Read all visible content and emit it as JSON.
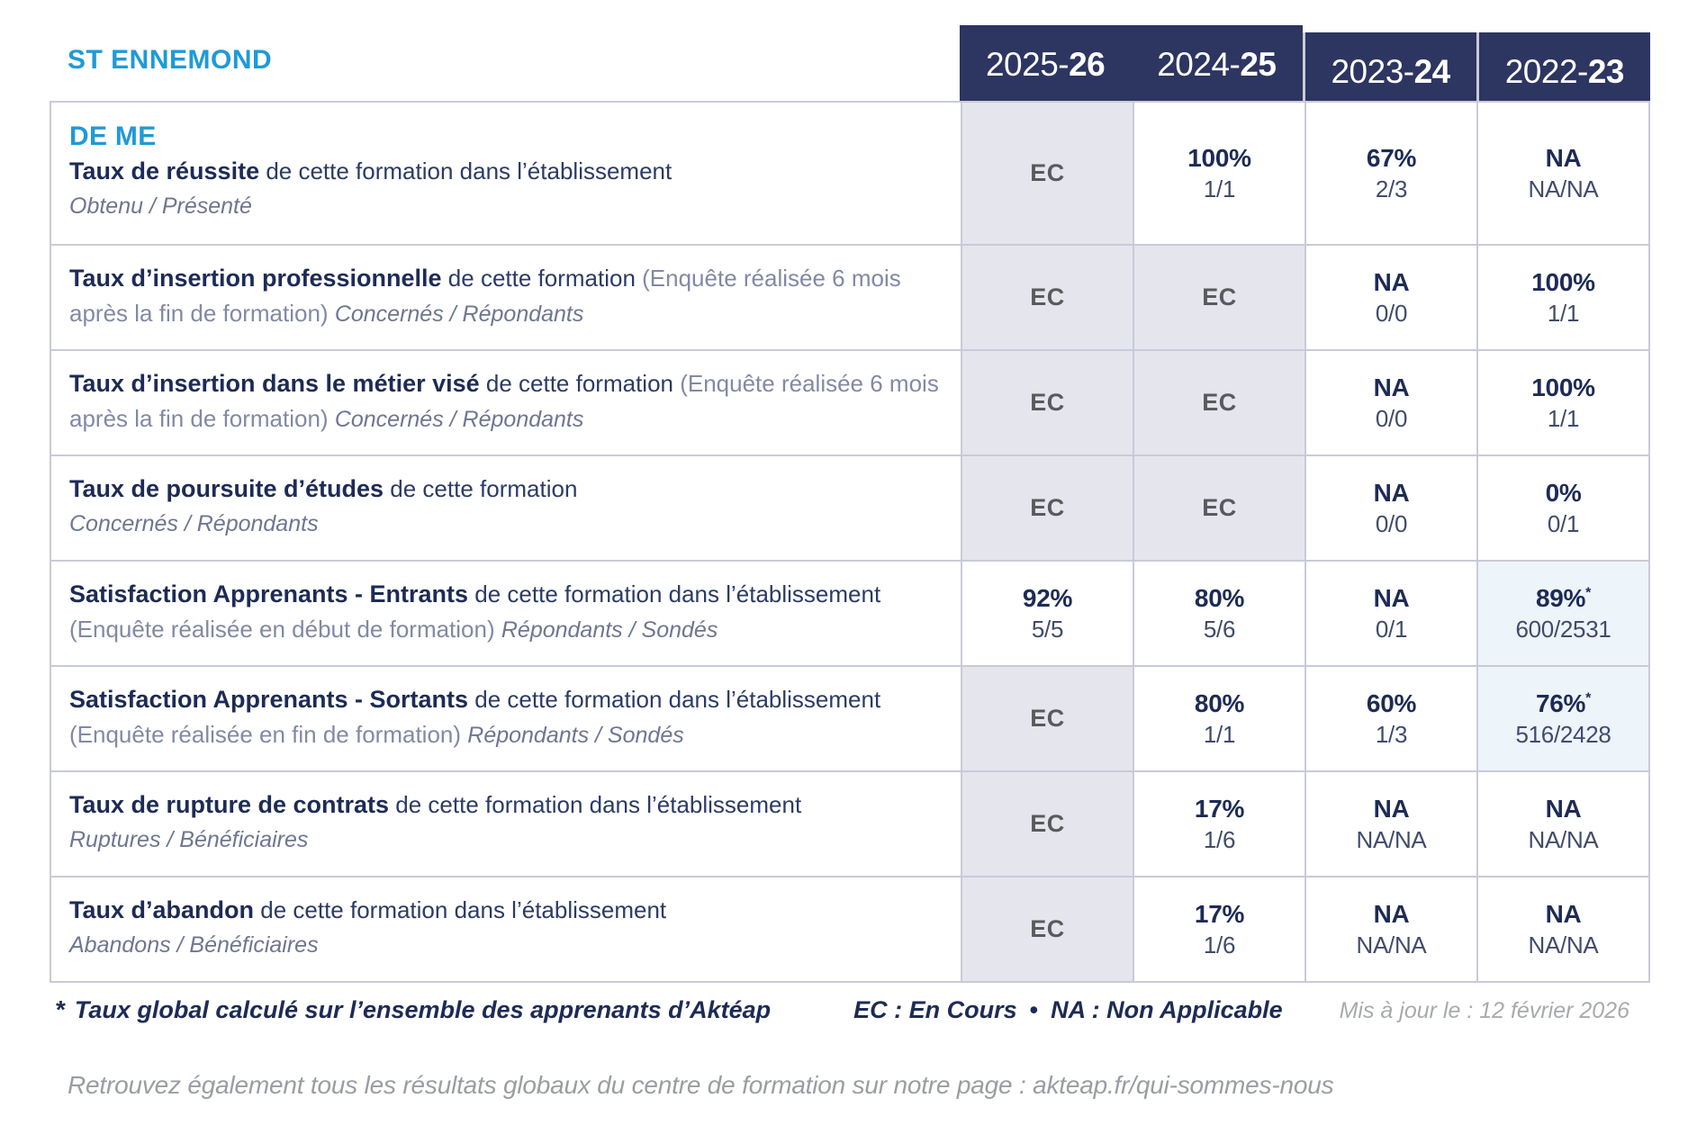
{
  "page": {
    "school": "ST ENNEMOND",
    "program": "DE ME"
  },
  "colors": {
    "header_navy": "#2d3561",
    "accent_blue": "#1f9ad7",
    "value_navy": "#1d2b55",
    "ec_cell_bg": "#e5e5ee",
    "highlight_cell_bg": "#edf4fa",
    "grid_border": "#c9cad8"
  },
  "columns": [
    {
      "prefix": "2025-",
      "suffix": "26"
    },
    {
      "prefix": "2024-",
      "suffix": "25"
    },
    {
      "prefix": "2023-",
      "suffix": "24"
    },
    {
      "prefix": "2022-",
      "suffix": "23"
    }
  ],
  "rows": [
    {
      "heading": "DE ME",
      "label": [
        {
          "t": "Taux de réussite",
          "s": "b"
        },
        {
          "t": " de cette formation dans l’établissement",
          "s": "n"
        }
      ],
      "label2": [
        {
          "t": "Obtenu / Présenté",
          "s": "i"
        }
      ],
      "cells": [
        {
          "type": "ec",
          "main": "EC"
        },
        {
          "type": "val",
          "main": "100%",
          "sub": "1/1"
        },
        {
          "type": "val",
          "main": "67%",
          "sub": "2/3"
        },
        {
          "type": "val",
          "main": "NA",
          "sub": "NA/NA"
        }
      ]
    },
    {
      "label": [
        {
          "t": "Taux d’insertion professionnelle",
          "s": "b"
        },
        {
          "t": " de cette formation ",
          "s": "n"
        },
        {
          "t": "(Enquête réalisée 6 mois après la fin de formation) ",
          "s": "g"
        },
        {
          "t": "Concernés / Répondants",
          "s": "i"
        }
      ],
      "cells": [
        {
          "type": "ec",
          "main": "EC"
        },
        {
          "type": "ec",
          "main": "EC"
        },
        {
          "type": "val",
          "main": "NA",
          "sub": "0/0"
        },
        {
          "type": "val",
          "main": "100%",
          "sub": "1/1"
        }
      ]
    },
    {
      "label": [
        {
          "t": "Taux d’insertion dans le métier visé",
          "s": "b"
        },
        {
          "t": " de cette formation ",
          "s": "n"
        },
        {
          "t": "(Enquête réalisée 6 mois après la fin de formation) ",
          "s": "g"
        },
        {
          "t": "Concernés / Répondants",
          "s": "i"
        }
      ],
      "cells": [
        {
          "type": "ec",
          "main": "EC"
        },
        {
          "type": "ec",
          "main": "EC"
        },
        {
          "type": "val",
          "main": "NA",
          "sub": "0/0"
        },
        {
          "type": "val",
          "main": "100%",
          "sub": "1/1"
        }
      ]
    },
    {
      "label": [
        {
          "t": "Taux de poursuite d’études",
          "s": "b"
        },
        {
          "t": " de cette formation",
          "s": "n"
        }
      ],
      "label2": [
        {
          "t": "Concernés / Répondants",
          "s": "i"
        }
      ],
      "cells": [
        {
          "type": "ec",
          "main": "EC"
        },
        {
          "type": "ec",
          "main": "EC"
        },
        {
          "type": "val",
          "main": "NA",
          "sub": "0/0"
        },
        {
          "type": "val",
          "main": "0%",
          "sub": "0/1"
        }
      ]
    },
    {
      "label": [
        {
          "t": "Satisfaction Apprenants - Entrants",
          "s": "b"
        },
        {
          "t": " de cette formation dans l’établissement ",
          "s": "n"
        },
        {
          "t": "(Enquête réalisée en début de formation) ",
          "s": "g"
        },
        {
          "t": "Répondants / Sondés",
          "s": "i"
        }
      ],
      "cells": [
        {
          "type": "val",
          "main": "92%",
          "sub": "5/5"
        },
        {
          "type": "val",
          "main": "80%",
          "sub": "5/6"
        },
        {
          "type": "val",
          "main": "NA",
          "sub": "0/1"
        },
        {
          "type": "hl",
          "main": "89%",
          "star": true,
          "sub": "600/2531"
        }
      ]
    },
    {
      "label": [
        {
          "t": "Satisfaction Apprenants - Sortants",
          "s": "b"
        },
        {
          "t": " de cette formation dans l’établissement ",
          "s": "n"
        },
        {
          "t": "(Enquête réalisée en fin de formation) ",
          "s": "g"
        },
        {
          "t": "Répondants / Sondés",
          "s": "i"
        }
      ],
      "cells": [
        {
          "type": "ec",
          "main": "EC"
        },
        {
          "type": "val",
          "main": "80%",
          "sub": "1/1"
        },
        {
          "type": "val",
          "main": "60%",
          "sub": "1/3"
        },
        {
          "type": "hl",
          "main": "76%",
          "star": true,
          "sub": "516/2428"
        }
      ]
    },
    {
      "label": [
        {
          "t": "Taux de rupture de contrats",
          "s": "b"
        },
        {
          "t": " de cette formation dans l’établissement",
          "s": "n"
        }
      ],
      "label2": [
        {
          "t": "Ruptures / Bénéficiaires",
          "s": "i"
        }
      ],
      "cells": [
        {
          "type": "ec",
          "main": "EC"
        },
        {
          "type": "val",
          "main": "17%",
          "sub": "1/6"
        },
        {
          "type": "val",
          "main": "NA",
          "sub": "NA/NA"
        },
        {
          "type": "val",
          "main": "NA",
          "sub": "NA/NA"
        }
      ]
    },
    {
      "label": [
        {
          "t": "Taux d’abandon",
          "s": "b"
        },
        {
          "t": " de cette formation dans l’établissement",
          "s": "n"
        }
      ],
      "label2": [
        {
          "t": "Abandons / Bénéficiaires",
          "s": "i"
        }
      ],
      "cells": [
        {
          "type": "ec",
          "main": "EC"
        },
        {
          "type": "val",
          "main": "17%",
          "sub": "1/6"
        },
        {
          "type": "val",
          "main": "NA",
          "sub": "NA/NA"
        },
        {
          "type": "val",
          "main": "NA",
          "sub": "NA/NA"
        }
      ]
    }
  ],
  "footer": {
    "star": "*",
    "footnote": "Taux global calculé sur l’ensemble des apprenants d’Aktéap",
    "legend_ec": "EC : En Cours",
    "legend_bullet": "•",
    "legend_na": "NA : Non Applicable",
    "updated": "Mis à jour le : 12 février 2026",
    "bottom_note": "Retrouvez également tous les résultats globaux du centre de formation sur notre page : akteap.fr/qui-sommes-nous"
  }
}
